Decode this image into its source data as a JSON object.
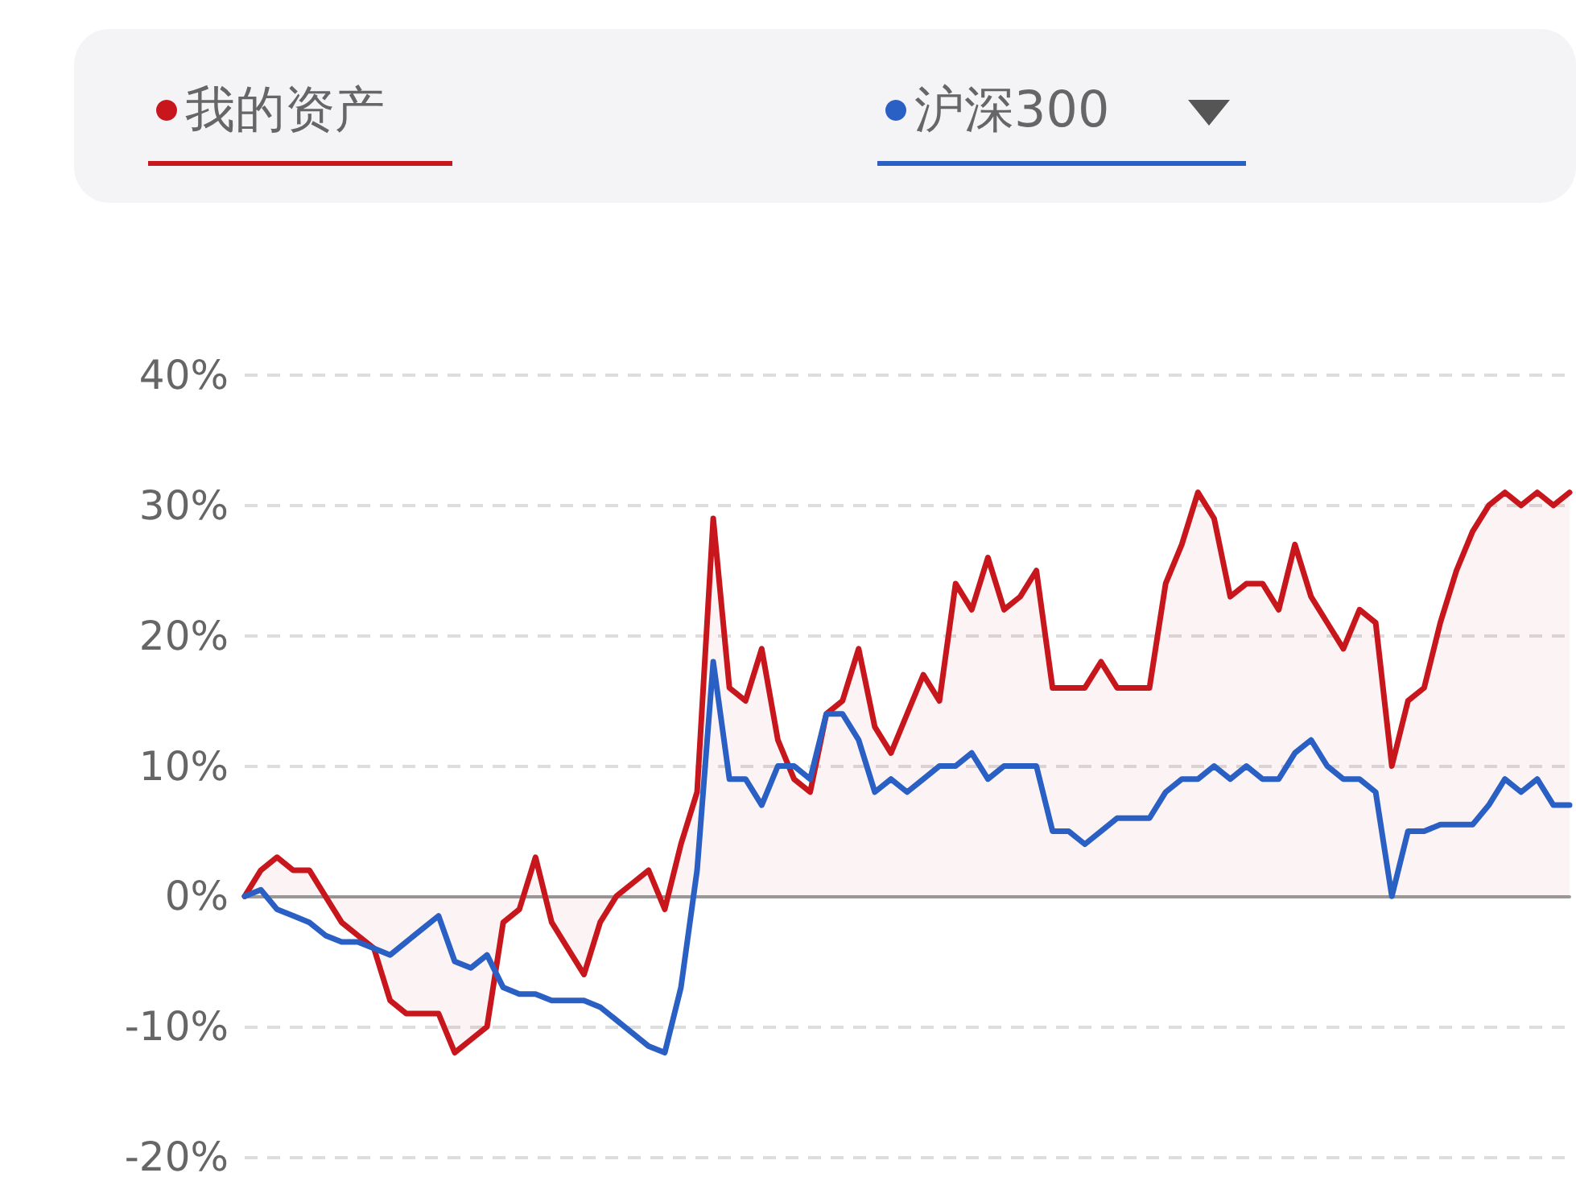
{
  "chart_data": {
    "type": "line",
    "categories": [
      null,
      null,
      null,
      null,
      null,
      null,
      null,
      null,
      null,
      null,
      null,
      null,
      null,
      null,
      null,
      null,
      null,
      null,
      null,
      null,
      null,
      null,
      null,
      null,
      null,
      null,
      null,
      null,
      null,
      null,
      null,
      null,
      null,
      null,
      null,
      null,
      null,
      null,
      null,
      null,
      null,
      null,
      null,
      null,
      null,
      null,
      null,
      null,
      null,
      null,
      null,
      null,
      null,
      null,
      null,
      null,
      null,
      null,
      null,
      null,
      null,
      null,
      null,
      null,
      null,
      null,
      null,
      null,
      null,
      null,
      null,
      null,
      null,
      null,
      null,
      null,
      null,
      null,
      null,
      null,
      null,
      null,
      null
    ],
    "series": [
      {
        "name": "我的资产",
        "type": "area",
        "color": "#c8161d",
        "values": [
          0,
          2,
          3,
          2,
          2,
          0,
          -2,
          -3,
          -4,
          -8,
          -9,
          -9,
          -9,
          -12,
          -11,
          -10,
          -2,
          -1,
          3,
          -2,
          -4,
          -6,
          -2,
          0,
          1,
          2,
          -1,
          4,
          8,
          29,
          16,
          15,
          19,
          12,
          9,
          8,
          14,
          15,
          19,
          13,
          11,
          14,
          17,
          15,
          24,
          22,
          26,
          22,
          23,
          25,
          16,
          16,
          16,
          18,
          16,
          16,
          16,
          24,
          27,
          31,
          29,
          23,
          24,
          24,
          22,
          27,
          23,
          21,
          19,
          22,
          21,
          10,
          15,
          16,
          21,
          25,
          28,
          30,
          31,
          30,
          31,
          30,
          31
        ]
      },
      {
        "name": "沪深300",
        "type": "line",
        "color": "#2a5fc4",
        "values": [
          0,
          0.5,
          -1,
          -1.5,
          -2,
          -3,
          -3.5,
          -3.5,
          -4,
          -4.5,
          -3.5,
          -2.5,
          -1.5,
          -5,
          -5.5,
          -4.5,
          -7,
          -7.5,
          -7.5,
          -8,
          -8,
          -8,
          -8.5,
          -9.5,
          -10.5,
          -11.5,
          -12,
          -7,
          2,
          18,
          9,
          9,
          7,
          10,
          10,
          9,
          14,
          14,
          12,
          8,
          9,
          8,
          9,
          10,
          10,
          11,
          9,
          10,
          10,
          10,
          5,
          5,
          4,
          5,
          6,
          6,
          6,
          8,
          9,
          9,
          10,
          9,
          10,
          9,
          9,
          11,
          12,
          10,
          9,
          9,
          8,
          0,
          5,
          5,
          5.5,
          5.5,
          5.5,
          7,
          9,
          8,
          9,
          7,
          7
        ]
      }
    ],
    "ylim": [
      -20,
      40
    ],
    "yticks": [
      {
        "value": -20,
        "label": "-20%"
      },
      {
        "value": -10,
        "label": "-10%"
      },
      {
        "value": 0,
        "label": "0%"
      },
      {
        "value": 10,
        "label": "10%"
      },
      {
        "value": 20,
        "label": "20%"
      },
      {
        "value": 30,
        "label": "30%"
      },
      {
        "value": 40,
        "label": "40%"
      }
    ],
    "grid": "y",
    "legend": "top",
    "marker": "none",
    "line_style": "solid",
    "tick_labels": "y"
  }
}
